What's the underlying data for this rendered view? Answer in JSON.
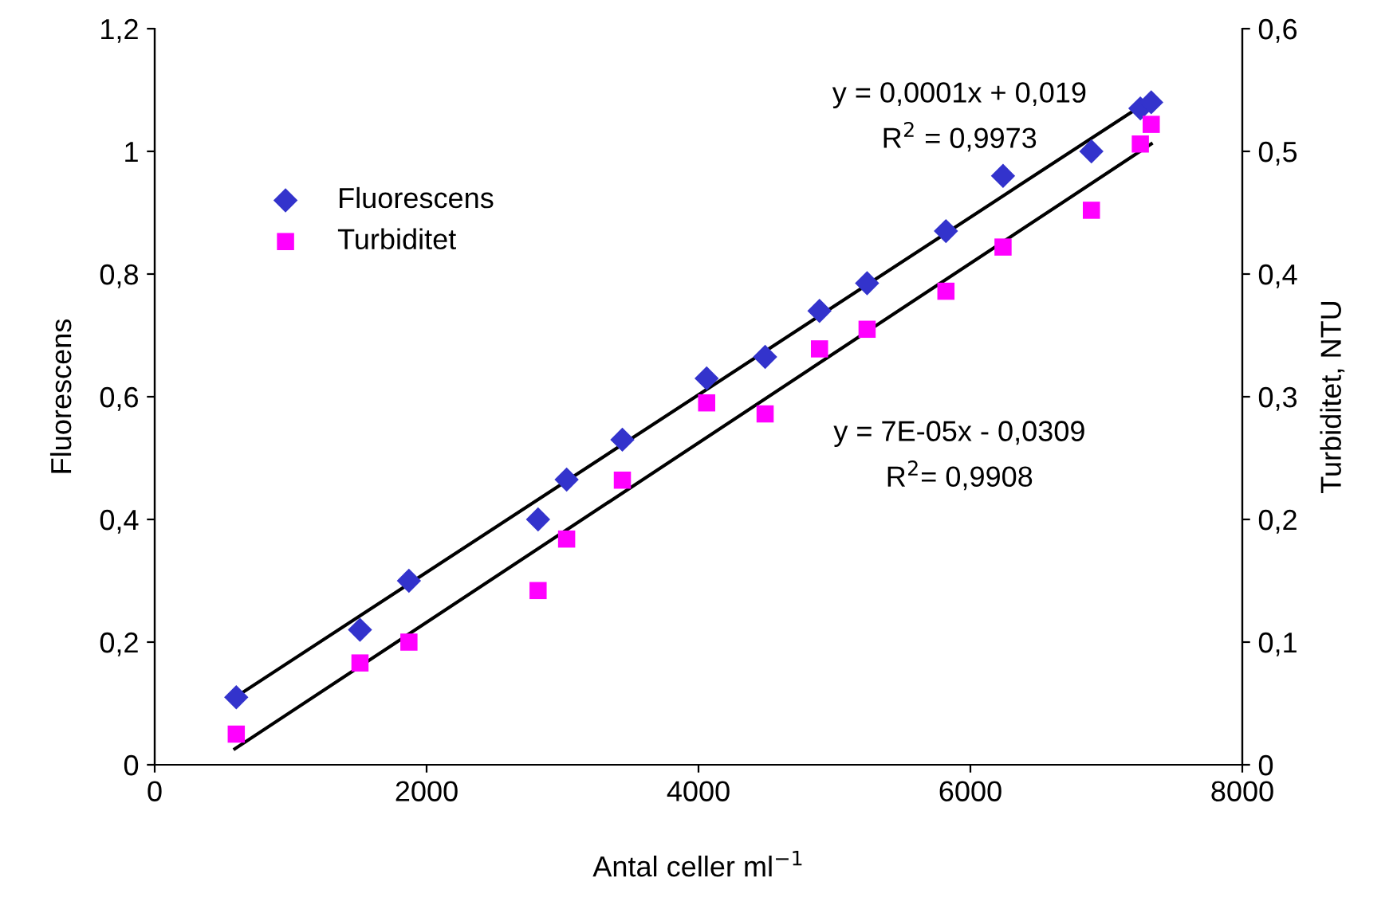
{
  "chart_data": {
    "type": "scatter",
    "xlabel": "Antal celler ml$^{−1}$",
    "ylabel": "Fluorescens",
    "y2label": "Turbiditet, NTU",
    "series": [
      {
        "name": "Fluorescens",
        "marker": "diamond",
        "color": "#3333cc",
        "x": [
          600,
          1510,
          1870,
          2820,
          3030,
          3440,
          4060,
          4490,
          4890,
          5240,
          5820,
          6240,
          6890,
          7250,
          7330
        ],
        "values": [
          0.11,
          0.22,
          0.3,
          0.4,
          0.465,
          0.53,
          0.63,
          0.665,
          0.74,
          0.785,
          0.87,
          0.96,
          1.0,
          1.07,
          1.08
        ]
      },
      {
        "name": "Turbiditet",
        "marker": "square",
        "axis": "y2",
        "color": "#ff00ff",
        "x": [
          600,
          1510,
          1870,
          2820,
          3030,
          3440,
          4060,
          4490,
          4890,
          5240,
          5820,
          6240,
          6890,
          7250,
          7330
        ],
        "values": [
          0.025,
          0.083,
          0.1,
          0.142,
          0.184,
          0.232,
          0.295,
          0.286,
          0.339,
          0.355,
          0.386,
          0.422,
          0.452,
          0.506,
          0.522
        ]
      },
      {
        "type": "line",
        "color": "#000000",
        "x": [
          640,
          7330
        ],
        "values": [
          0.117,
          1.085
        ]
      },
      {
        "type": "line",
        "axis": "y2",
        "color": "#000000",
        "x": [
          590,
          7330
        ],
        "values": [
          0.013,
          0.506
        ]
      }
    ],
    "annotations": [
      "y = 0,0001x + 0,019",
      "R$^{2}$ = 0,9973",
      "y = 7E-05x - 0,0309",
      "R$^{2}$= 0,9908"
    ],
    "xlim": [
      0,
      8000
    ],
    "xticks": [
      0,
      2000,
      4000,
      6000,
      8000
    ],
    "ylim": [
      0,
      1.2
    ],
    "yticks": [
      0,
      {
        "value": 0.2,
        "label": "0,2"
      },
      {
        "value": 0.4,
        "label": "0,4"
      },
      {
        "value": 0.6,
        "label": "0,6"
      },
      {
        "value": 0.8,
        "label": "0,8"
      },
      1,
      {
        "value": 1.2,
        "label": "1,2"
      }
    ],
    "y2lim": [
      0,
      0.6
    ],
    "y2ticks": [
      0,
      {
        "value": 0.1,
        "label": "0,1"
      },
      {
        "value": 0.2,
        "label": "0,2"
      },
      {
        "value": 0.3,
        "label": "0,3"
      },
      {
        "value": 0.4,
        "label": "0,4"
      },
      {
        "value": 0.5,
        "label": "0,5"
      },
      {
        "value": 0.6,
        "label": "0,6"
      }
    ],
    "grid": false,
    "legend": "top left"
  }
}
